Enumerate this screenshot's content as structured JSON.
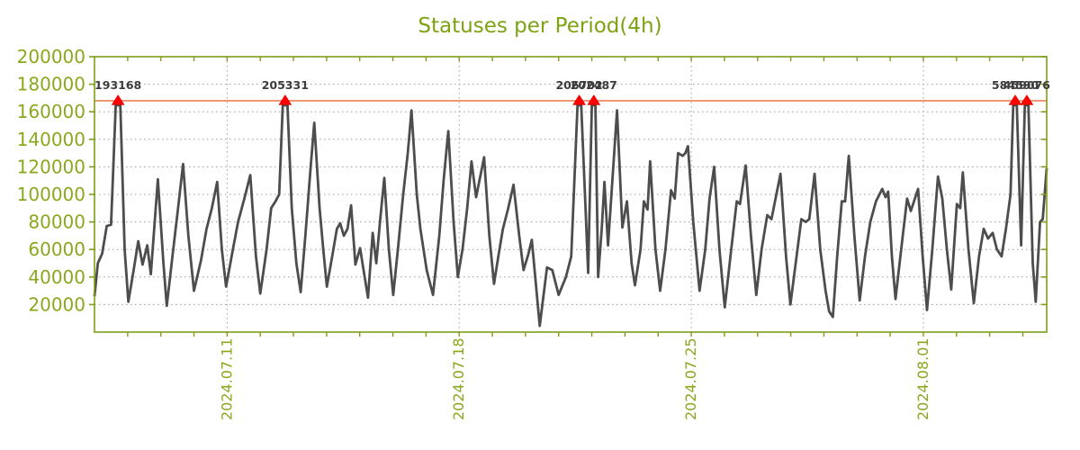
{
  "chart_data": {
    "type": "line",
    "title": "Statuses per Period(4h)",
    "colors": {
      "title": "#7da313",
      "axis_box": "#7f9c1c",
      "tick_labels": "#8aa81e",
      "grid": "#9c9c9c",
      "series": "#4d4d4d",
      "threshold": "#f08055",
      "marker": "#ff0000",
      "annotation_text": "#3c3c3c"
    },
    "ylim": [
      0,
      200000
    ],
    "y_ticks": [
      20000,
      40000,
      60000,
      80000,
      100000,
      120000,
      140000,
      160000,
      180000,
      200000
    ],
    "x_range_days": [
      0,
      28.72
    ],
    "x_minor_tick_every_days": 1,
    "x_major_ticks": [
      {
        "t": 4,
        "label": "2024.07.11"
      },
      {
        "t": 11,
        "label": "2024.07.18"
      },
      {
        "t": 18,
        "label": "2024.07.25"
      },
      {
        "t": 25,
        "label": "2024.08.01"
      }
    ],
    "threshold": {
      "value": 168000
    },
    "annotations": [
      {
        "t": 0.71,
        "label": "193168"
      },
      {
        "t": 5.75,
        "label": "205331"
      },
      {
        "t": 14.62,
        "label": "206702"
      },
      {
        "t": 15.06,
        "label": "202487"
      },
      {
        "t": 27.77,
        "label": "584590"
      },
      {
        "t": 28.12,
        "label": "459076"
      }
    ],
    "series": [
      {
        "name": "statuses",
        "points": [
          [
            0.0,
            26000
          ],
          [
            0.1,
            50000
          ],
          [
            0.23,
            57000
          ],
          [
            0.37,
            77000
          ],
          [
            0.5,
            78000
          ],
          [
            0.64,
            193168
          ],
          [
            0.78,
            193168
          ],
          [
            0.91,
            60000
          ],
          [
            1.02,
            22000
          ],
          [
            1.18,
            45000
          ],
          [
            1.32,
            66000
          ],
          [
            1.45,
            49000
          ],
          [
            1.59,
            63000
          ],
          [
            1.7,
            42000
          ],
          [
            1.91,
            111000
          ],
          [
            2.08,
            50000
          ],
          [
            2.18,
            19000
          ],
          [
            2.35,
            55000
          ],
          [
            2.51,
            88000
          ],
          [
            2.67,
            122000
          ],
          [
            2.83,
            70000
          ],
          [
            3.0,
            30000
          ],
          [
            3.21,
            52000
          ],
          [
            3.38,
            75000
          ],
          [
            3.54,
            90000
          ],
          [
            3.7,
            109000
          ],
          [
            3.84,
            60000
          ],
          [
            3.97,
            33000
          ],
          [
            4.16,
            58000
          ],
          [
            4.33,
            80000
          ],
          [
            4.52,
            97000
          ],
          [
            4.7,
            114000
          ],
          [
            4.87,
            55000
          ],
          [
            5.0,
            28000
          ],
          [
            5.19,
            60000
          ],
          [
            5.33,
            90000
          ],
          [
            5.46,
            95000
          ],
          [
            5.57,
            100000
          ],
          [
            5.68,
            205331
          ],
          [
            5.82,
            205331
          ],
          [
            5.95,
            90000
          ],
          [
            6.09,
            50000
          ],
          [
            6.22,
            29000
          ],
          [
            6.36,
            70000
          ],
          [
            6.52,
            120000
          ],
          [
            6.63,
            152000
          ],
          [
            6.79,
            90000
          ],
          [
            6.9,
            60000
          ],
          [
            7.01,
            33000
          ],
          [
            7.17,
            55000
          ],
          [
            7.31,
            75000
          ],
          [
            7.41,
            79000
          ],
          [
            7.52,
            70000
          ],
          [
            7.63,
            75000
          ],
          [
            7.74,
            92000
          ],
          [
            7.87,
            49000
          ],
          [
            8.01,
            61000
          ],
          [
            8.15,
            40000
          ],
          [
            8.25,
            25000
          ],
          [
            8.39,
            72000
          ],
          [
            8.5,
            50000
          ],
          [
            8.61,
            80000
          ],
          [
            8.74,
            112000
          ],
          [
            8.88,
            60000
          ],
          [
            9.01,
            27000
          ],
          [
            9.15,
            60000
          ],
          [
            9.31,
            100000
          ],
          [
            9.45,
            130000
          ],
          [
            9.56,
            161000
          ],
          [
            9.72,
            100000
          ],
          [
            9.83,
            75000
          ],
          [
            10.02,
            45000
          ],
          [
            10.21,
            27000
          ],
          [
            10.4,
            70000
          ],
          [
            10.53,
            110000
          ],
          [
            10.67,
            146000
          ],
          [
            10.83,
            80000
          ],
          [
            10.96,
            40000
          ],
          [
            11.1,
            60000
          ],
          [
            11.24,
            90000
          ],
          [
            11.37,
            124000
          ],
          [
            11.51,
            98000
          ],
          [
            11.75,
            127000
          ],
          [
            11.91,
            70000
          ],
          [
            12.05,
            35000
          ],
          [
            12.18,
            55000
          ],
          [
            12.32,
            75000
          ],
          [
            12.48,
            90000
          ],
          [
            12.64,
            107000
          ],
          [
            12.81,
            70000
          ],
          [
            12.94,
            45000
          ],
          [
            13.08,
            56000
          ],
          [
            13.19,
            67000
          ],
          [
            13.43,
            4500
          ],
          [
            13.65,
            47000
          ],
          [
            13.81,
            45000
          ],
          [
            14.0,
            27000
          ],
          [
            14.22,
            40000
          ],
          [
            14.38,
            55000
          ],
          [
            14.57,
            206702
          ],
          [
            14.68,
            206702
          ],
          [
            14.81,
            90000
          ],
          [
            14.89,
            43000
          ],
          [
            15.0,
            202487
          ],
          [
            15.11,
            202487
          ],
          [
            15.19,
            40000
          ],
          [
            15.3,
            75000
          ],
          [
            15.38,
            109000
          ],
          [
            15.49,
            63000
          ],
          [
            15.76,
            161000
          ],
          [
            15.92,
            76000
          ],
          [
            16.06,
            95000
          ],
          [
            16.2,
            50000
          ],
          [
            16.3,
            34000
          ],
          [
            16.47,
            60000
          ],
          [
            16.57,
            95000
          ],
          [
            16.68,
            89000
          ],
          [
            16.76,
            124000
          ],
          [
            16.92,
            60000
          ],
          [
            17.06,
            30000
          ],
          [
            17.22,
            60000
          ],
          [
            17.39,
            103000
          ],
          [
            17.5,
            97000
          ],
          [
            17.6,
            130000
          ],
          [
            17.74,
            128000
          ],
          [
            17.82,
            130000
          ],
          [
            17.9,
            135000
          ],
          [
            18.06,
            80000
          ],
          [
            18.25,
            30000
          ],
          [
            18.42,
            60000
          ],
          [
            18.55,
            97000
          ],
          [
            18.69,
            120000
          ],
          [
            18.85,
            60000
          ],
          [
            19.01,
            18000
          ],
          [
            19.18,
            55000
          ],
          [
            19.37,
            95000
          ],
          [
            19.47,
            93000
          ],
          [
            19.64,
            121000
          ],
          [
            19.8,
            70000
          ],
          [
            19.96,
            27000
          ],
          [
            20.12,
            60000
          ],
          [
            20.29,
            85000
          ],
          [
            20.42,
            82000
          ],
          [
            20.69,
            115000
          ],
          [
            20.86,
            55000
          ],
          [
            20.99,
            20000
          ],
          [
            21.15,
            50000
          ],
          [
            21.32,
            82000
          ],
          [
            21.45,
            80000
          ],
          [
            21.56,
            82000
          ],
          [
            21.72,
            115000
          ],
          [
            21.89,
            60000
          ],
          [
            22.05,
            30000
          ],
          [
            22.16,
            15000
          ],
          [
            22.27,
            11000
          ],
          [
            22.4,
            55000
          ],
          [
            22.54,
            95000
          ],
          [
            22.64,
            95000
          ],
          [
            22.75,
            128000
          ],
          [
            22.92,
            70000
          ],
          [
            23.08,
            23000
          ],
          [
            23.24,
            55000
          ],
          [
            23.4,
            80000
          ],
          [
            23.57,
            95000
          ],
          [
            23.76,
            104000
          ],
          [
            23.86,
            98000
          ],
          [
            23.94,
            102000
          ],
          [
            24.05,
            55000
          ],
          [
            24.16,
            24000
          ],
          [
            24.33,
            60000
          ],
          [
            24.51,
            97000
          ],
          [
            24.62,
            88000
          ],
          [
            24.84,
            104000
          ],
          [
            24.98,
            55000
          ],
          [
            25.11,
            16000
          ],
          [
            25.27,
            60000
          ],
          [
            25.44,
            113000
          ],
          [
            25.57,
            97000
          ],
          [
            25.71,
            60000
          ],
          [
            25.84,
            31000
          ],
          [
            26.01,
            93000
          ],
          [
            26.11,
            90000
          ],
          [
            26.19,
            116000
          ],
          [
            26.36,
            60000
          ],
          [
            26.52,
            21000
          ],
          [
            26.68,
            55000
          ],
          [
            26.82,
            75000
          ],
          [
            26.95,
            68000
          ],
          [
            27.09,
            72000
          ],
          [
            27.22,
            60000
          ],
          [
            27.36,
            55000
          ],
          [
            27.49,
            75000
          ],
          [
            27.63,
            100000
          ],
          [
            27.71,
            584590
          ],
          [
            27.82,
            584590
          ],
          [
            27.95,
            63000
          ],
          [
            28.06,
            459076
          ],
          [
            28.17,
            459076
          ],
          [
            28.3,
            50000
          ],
          [
            28.39,
            22000
          ],
          [
            28.52,
            80000
          ],
          [
            28.6,
            82000
          ],
          [
            28.72,
            119000
          ]
        ]
      }
    ]
  }
}
